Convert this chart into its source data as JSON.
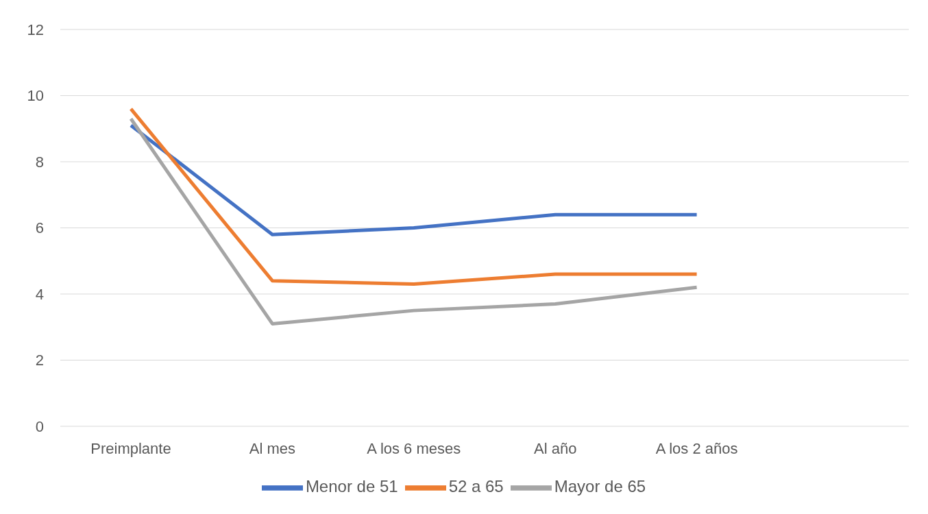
{
  "chart_data": {
    "type": "line",
    "categories": [
      "Preimplante",
      "Al mes",
      "A los 6 meses",
      "Al año",
      "A los 2 años",
      null
    ],
    "series": [
      {
        "name": "Menor de 51",
        "color": "#4472c4",
        "values": [
          9.1,
          5.8,
          6.0,
          6.4,
          6.4,
          null
        ]
      },
      {
        "name": "52 a 65",
        "color": "#ed7d31",
        "values": [
          9.6,
          4.4,
          4.3,
          4.6,
          4.6,
          null
        ]
      },
      {
        "name": "Mayor de 65",
        "color": "#a5a5a5",
        "values": [
          9.3,
          3.1,
          3.5,
          3.7,
          4.2,
          null
        ]
      }
    ],
    "ylim": [
      0,
      12
    ],
    "yticks": [
      0,
      2,
      4,
      6,
      8,
      10,
      12
    ],
    "grid": "y",
    "legend": "bottom",
    "marker": "none",
    "line_style": "solid"
  }
}
